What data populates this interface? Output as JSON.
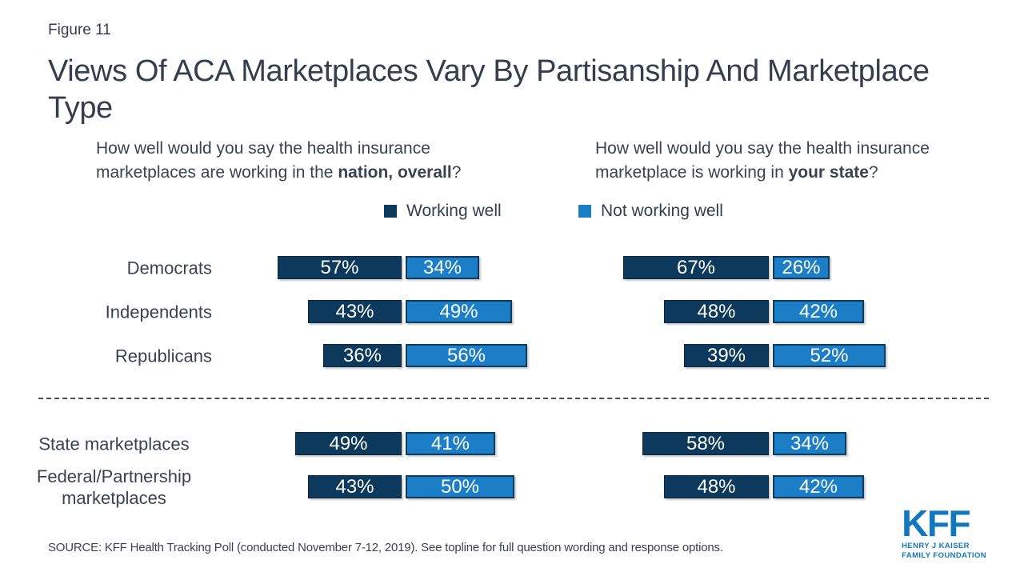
{
  "figure_label": "Figure 11",
  "title": {
    "full": "Views Of ACA Marketplaces Vary By Partisanship And Marketplace Type",
    "lines": [
      "Views Of ACA Marketplaces Vary By Partisanship And Marketplace",
      "Type"
    ]
  },
  "questions": {
    "left": {
      "line1": "How well would you say the health insurance",
      "line2_plain": "marketplaces are working in the ",
      "line2_bold": "nation, overall",
      "line2_end": "?"
    },
    "right": {
      "line1": "How well would you say the health insurance",
      "line2_plain": "marketplace is working in ",
      "line2_bold": "your state",
      "line2_end": "?"
    }
  },
  "legend": {
    "items": [
      {
        "label": "Working well",
        "color": "#0d3a5c"
      },
      {
        "label": "Not working well",
        "color": "#1b7ec6"
      }
    ]
  },
  "chart_data": {
    "type": "bar",
    "orientation": "horizontal-paired",
    "unit": "%",
    "grid": false,
    "legend_position": "top-center",
    "categories": [
      "Democrats",
      "Independents",
      "Republicans",
      "State marketplaces",
      "Federal/Partnership marketplaces"
    ],
    "group_separator_after_index": 2,
    "panels": [
      {
        "name": "Working in the nation, overall",
        "series": [
          {
            "name": "Working well",
            "color": "#0d3a5c",
            "values": [
              57,
              43,
              36,
              49,
              43
            ]
          },
          {
            "name": "Not working well",
            "color": "#1b7ec6",
            "values": [
              34,
              49,
              56,
              41,
              50
            ]
          }
        ]
      },
      {
        "name": "Working in your state",
        "series": [
          {
            "name": "Working well",
            "color": "#0d3a5c",
            "values": [
              67,
              48,
              39,
              58,
              48
            ]
          },
          {
            "name": "Not working well",
            "color": "#1b7ec6",
            "values": [
              26,
              42,
              52,
              34,
              42
            ]
          }
        ]
      }
    ]
  },
  "source": "SOURCE: KFF Health Tracking Poll (conducted November 7-12, 2019). See topline for full question wording and response options.",
  "logo": {
    "acronym": "KFF",
    "line1": "HENRY J KAISER",
    "line2": "FAMILY FOUNDATION",
    "color": "#1277bd"
  }
}
